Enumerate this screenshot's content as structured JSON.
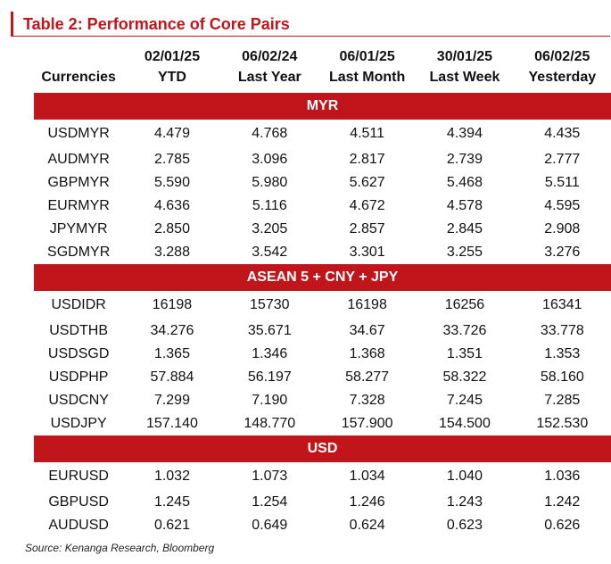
{
  "title": "Table 2: Performance of Core Pairs",
  "header": {
    "dates": [
      "02/01/25",
      "06/02/24",
      "06/01/25",
      "30/01/25",
      "06/02/25"
    ],
    "first_col": "Currencies",
    "periods": [
      "YTD",
      "Last Year",
      "Last Month",
      "Last Week",
      "Yesterday"
    ]
  },
  "sections": [
    {
      "label": "MYR",
      "rows": [
        {
          "pair": "USDMYR",
          "values": [
            "4.479",
            "4.768",
            "4.511",
            "4.394",
            "4.435"
          ]
        },
        {
          "pair": "AUDMYR",
          "values": [
            "2.785",
            "3.096",
            "2.817",
            "2.739",
            "2.777"
          ]
        },
        {
          "pair": "GBPMYR",
          "values": [
            "5.590",
            "5.980",
            "5.627",
            "5.468",
            "5.511"
          ]
        },
        {
          "pair": "EURMYR",
          "values": [
            "4.636",
            "5.116",
            "4.672",
            "4.578",
            "4.595"
          ]
        },
        {
          "pair": "JPYMYR",
          "values": [
            "2.850",
            "3.205",
            "2.857",
            "2.845",
            "2.908"
          ]
        },
        {
          "pair": "SGDMYR",
          "values": [
            "3.288",
            "3.542",
            "3.301",
            "3.255",
            "3.276"
          ]
        }
      ]
    },
    {
      "label": "ASEAN 5 + CNY + JPY",
      "rows": [
        {
          "pair": "USDIDR",
          "values": [
            "16198",
            "15730",
            "16198",
            "16256",
            "16341"
          ]
        },
        {
          "pair": "USDTHB",
          "values": [
            "34.276",
            "35.671",
            "34.67",
            "33.726",
            "33.778"
          ]
        },
        {
          "pair": "USDSGD",
          "values": [
            "1.365",
            "1.346",
            "1.368",
            "1.351",
            "1.353"
          ]
        },
        {
          "pair": "USDPHP",
          "values": [
            "57.884",
            "56.197",
            "58.277",
            "58.322",
            "58.160"
          ]
        },
        {
          "pair": "USDCNY",
          "values": [
            "7.299",
            "7.190",
            "7.328",
            "7.245",
            "7.285"
          ]
        },
        {
          "pair": "USDJPY",
          "values": [
            "157.140",
            "148.770",
            "157.900",
            "154.500",
            "152.530"
          ]
        }
      ]
    },
    {
      "label": "USD",
      "rows": [
        {
          "pair": "EURUSD",
          "values": [
            "1.032",
            "1.073",
            "1.034",
            "1.040",
            "1.036"
          ]
        },
        {
          "pair": "GBPUSD",
          "values": [
            "1.245",
            "1.254",
            "1.246",
            "1.243",
            "1.242"
          ]
        },
        {
          "pair": "AUDUSD",
          "values": [
            "0.621",
            "0.649",
            "0.624",
            "0.623",
            "0.626"
          ]
        }
      ]
    }
  ],
  "source": "Source: Kenanga Research, Bloomberg",
  "colors": {
    "accent": "#c0151b"
  }
}
